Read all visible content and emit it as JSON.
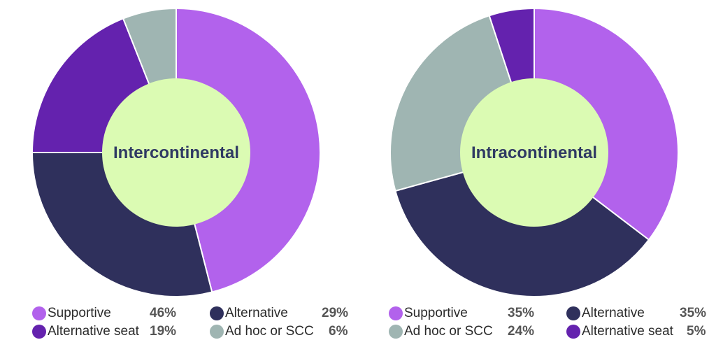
{
  "colors": {
    "supportive": "#b262ec",
    "alternative": "#2f305c",
    "alternative_seat": "#6422ae",
    "ad_hoc": "#9fb5b2",
    "center": "#dbfbb3",
    "center_text": "#2f3a63"
  },
  "chart_data": [
    {
      "type": "pie",
      "center_label": "Intercontinental",
      "slices": [
        {
          "name": "Supportive",
          "value": 46,
          "label": "46%",
          "color_key": "supportive"
        },
        {
          "name": "Alternative",
          "value": 29,
          "label": "29%",
          "color_key": "alternative"
        },
        {
          "name": "Alternative seat",
          "value": 19,
          "label": "19%",
          "color_key": "alternative_seat"
        },
        {
          "name": "Ad hoc or SCC",
          "value": 6,
          "label": "6%",
          "color_key": "ad_hoc"
        }
      ]
    },
    {
      "type": "pie",
      "center_label": "Intracontinental",
      "slices": [
        {
          "name": "Supportive",
          "value": 35,
          "label": "35%",
          "color_key": "supportive"
        },
        {
          "name": "Alternative",
          "value": 35,
          "label": "35%",
          "color_key": "alternative"
        },
        {
          "name": "Ad hoc or SCC",
          "value": 24,
          "label": "24%",
          "color_key": "ad_hoc"
        },
        {
          "name": "Alternative seat",
          "value": 5,
          "label": "5%",
          "color_key": "alternative_seat"
        }
      ]
    }
  ]
}
